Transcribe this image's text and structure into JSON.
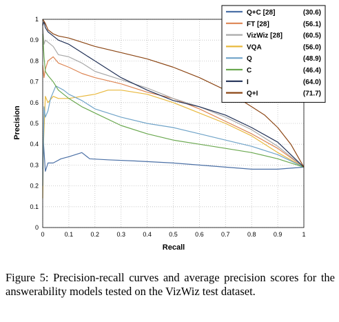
{
  "caption": "Figure 5:  Precision-recall curves and average precision scores for the answerability models tested on the VizWiz test dataset.",
  "chart_data": {
    "type": "line",
    "xlabel": "Recall",
    "ylabel": "Precision",
    "xlim": [
      0,
      1
    ],
    "ylim": [
      0,
      1
    ],
    "xticks": [
      "0",
      "0.1",
      "0.2",
      "0.3",
      "0.4",
      "0.5",
      "0.6",
      "0.7",
      "0.8",
      "0.9",
      "1"
    ],
    "yticks": [
      "0",
      "0.1",
      "0.2",
      "0.3",
      "0.4",
      "0.5",
      "0.6",
      "0.7",
      "0.8",
      "0.9",
      "1"
    ],
    "grid": true,
    "legend_position": "top-right",
    "series": [
      {
        "name": "Q+C [28]",
        "score": "(30.6)",
        "color": "#4a6fa5",
        "points": [
          [
            0,
            0.28
          ],
          [
            0.003,
            0.41
          ],
          [
            0.01,
            0.27
          ],
          [
            0.02,
            0.31
          ],
          [
            0.04,
            0.31
          ],
          [
            0.07,
            0.33
          ],
          [
            0.1,
            0.34
          ],
          [
            0.15,
            0.36
          ],
          [
            0.18,
            0.33
          ],
          [
            0.25,
            0.325
          ],
          [
            0.35,
            0.32
          ],
          [
            0.5,
            0.31
          ],
          [
            0.6,
            0.3
          ],
          [
            0.7,
            0.29
          ],
          [
            0.8,
            0.28
          ],
          [
            0.9,
            0.28
          ],
          [
            1.0,
            0.29
          ]
        ]
      },
      {
        "name": "FT [28]",
        "score": "(56.1)",
        "color": "#dd8452",
        "points": [
          [
            0,
            0.78
          ],
          [
            0.005,
            0.72
          ],
          [
            0.01,
            0.76
          ],
          [
            0.02,
            0.8
          ],
          [
            0.04,
            0.82
          ],
          [
            0.06,
            0.79
          ],
          [
            0.1,
            0.77
          ],
          [
            0.15,
            0.74
          ],
          [
            0.2,
            0.72
          ],
          [
            0.3,
            0.69
          ],
          [
            0.4,
            0.65
          ],
          [
            0.5,
            0.62
          ],
          [
            0.6,
            0.57
          ],
          [
            0.7,
            0.51
          ],
          [
            0.8,
            0.45
          ],
          [
            0.9,
            0.38
          ],
          [
            1.0,
            0.29
          ]
        ]
      },
      {
        "name": "VizWiz [28]",
        "score": "(60.5)",
        "color": "#a9a9a9",
        "points": [
          [
            0,
            0.97
          ],
          [
            0.005,
            0.88
          ],
          [
            0.01,
            0.9
          ],
          [
            0.02,
            0.89
          ],
          [
            0.04,
            0.87
          ],
          [
            0.06,
            0.83
          ],
          [
            0.1,
            0.82
          ],
          [
            0.15,
            0.79
          ],
          [
            0.2,
            0.75
          ],
          [
            0.3,
            0.71
          ],
          [
            0.4,
            0.67
          ],
          [
            0.5,
            0.62
          ],
          [
            0.6,
            0.58
          ],
          [
            0.7,
            0.53
          ],
          [
            0.8,
            0.47
          ],
          [
            0.9,
            0.39
          ],
          [
            1.0,
            0.29
          ]
        ]
      },
      {
        "name": "VQA",
        "score": "(56.0)",
        "color": "#e8b83c",
        "points": [
          [
            0,
            0.14
          ],
          [
            0.003,
            0.4
          ],
          [
            0.01,
            0.63
          ],
          [
            0.02,
            0.6
          ],
          [
            0.04,
            0.63
          ],
          [
            0.06,
            0.62
          ],
          [
            0.1,
            0.62
          ],
          [
            0.15,
            0.63
          ],
          [
            0.2,
            0.64
          ],
          [
            0.25,
            0.66
          ],
          [
            0.3,
            0.66
          ],
          [
            0.4,
            0.64
          ],
          [
            0.5,
            0.6
          ],
          [
            0.6,
            0.55
          ],
          [
            0.7,
            0.5
          ],
          [
            0.8,
            0.44
          ],
          [
            0.9,
            0.36
          ],
          [
            1.0,
            0.29
          ]
        ]
      },
      {
        "name": "Q",
        "score": "(48.9)",
        "color": "#6fa3c8",
        "points": [
          [
            0,
            0.2
          ],
          [
            0.005,
            0.58
          ],
          [
            0.01,
            0.53
          ],
          [
            0.02,
            0.56
          ],
          [
            0.03,
            0.62
          ],
          [
            0.05,
            0.68
          ],
          [
            0.08,
            0.66
          ],
          [
            0.1,
            0.64
          ],
          [
            0.15,
            0.61
          ],
          [
            0.2,
            0.57
          ],
          [
            0.3,
            0.53
          ],
          [
            0.4,
            0.5
          ],
          [
            0.5,
            0.48
          ],
          [
            0.6,
            0.45
          ],
          [
            0.7,
            0.42
          ],
          [
            0.8,
            0.39
          ],
          [
            0.9,
            0.35
          ],
          [
            1.0,
            0.29
          ]
        ]
      },
      {
        "name": "C",
        "score": "(46.4)",
        "color": "#6aa84f",
        "points": [
          [
            0,
            0.93
          ],
          [
            0.005,
            0.82
          ],
          [
            0.01,
            0.75
          ],
          [
            0.02,
            0.73
          ],
          [
            0.04,
            0.7
          ],
          [
            0.06,
            0.66
          ],
          [
            0.1,
            0.62
          ],
          [
            0.15,
            0.58
          ],
          [
            0.2,
            0.55
          ],
          [
            0.3,
            0.49
          ],
          [
            0.4,
            0.45
          ],
          [
            0.5,
            0.42
          ],
          [
            0.6,
            0.4
          ],
          [
            0.7,
            0.38
          ],
          [
            0.8,
            0.36
          ],
          [
            0.9,
            0.33
          ],
          [
            1.0,
            0.29
          ]
        ]
      },
      {
        "name": "I",
        "score": "(64.0)",
        "color": "#1f2f55",
        "points": [
          [
            0,
            0.97
          ],
          [
            0.005,
            0.99
          ],
          [
            0.01,
            0.96
          ],
          [
            0.02,
            0.94
          ],
          [
            0.04,
            0.92
          ],
          [
            0.06,
            0.9
          ],
          [
            0.1,
            0.88
          ],
          [
            0.15,
            0.84
          ],
          [
            0.2,
            0.8
          ],
          [
            0.3,
            0.72
          ],
          [
            0.4,
            0.66
          ],
          [
            0.5,
            0.61
          ],
          [
            0.6,
            0.58
          ],
          [
            0.7,
            0.54
          ],
          [
            0.8,
            0.48
          ],
          [
            0.9,
            0.41
          ],
          [
            1.0,
            0.29
          ]
        ]
      },
      {
        "name": "Q+I",
        "score": "(71.7)",
        "color": "#8b4513",
        "points": [
          [
            0,
            1.0
          ],
          [
            0.01,
            0.98
          ],
          [
            0.02,
            0.95
          ],
          [
            0.04,
            0.93
          ],
          [
            0.06,
            0.92
          ],
          [
            0.1,
            0.91
          ],
          [
            0.15,
            0.89
          ],
          [
            0.2,
            0.87
          ],
          [
            0.3,
            0.84
          ],
          [
            0.4,
            0.81
          ],
          [
            0.5,
            0.77
          ],
          [
            0.6,
            0.72
          ],
          [
            0.7,
            0.66
          ],
          [
            0.8,
            0.58
          ],
          [
            0.85,
            0.54
          ],
          [
            0.9,
            0.48
          ],
          [
            0.95,
            0.4
          ],
          [
            1.0,
            0.29
          ]
        ]
      }
    ]
  }
}
